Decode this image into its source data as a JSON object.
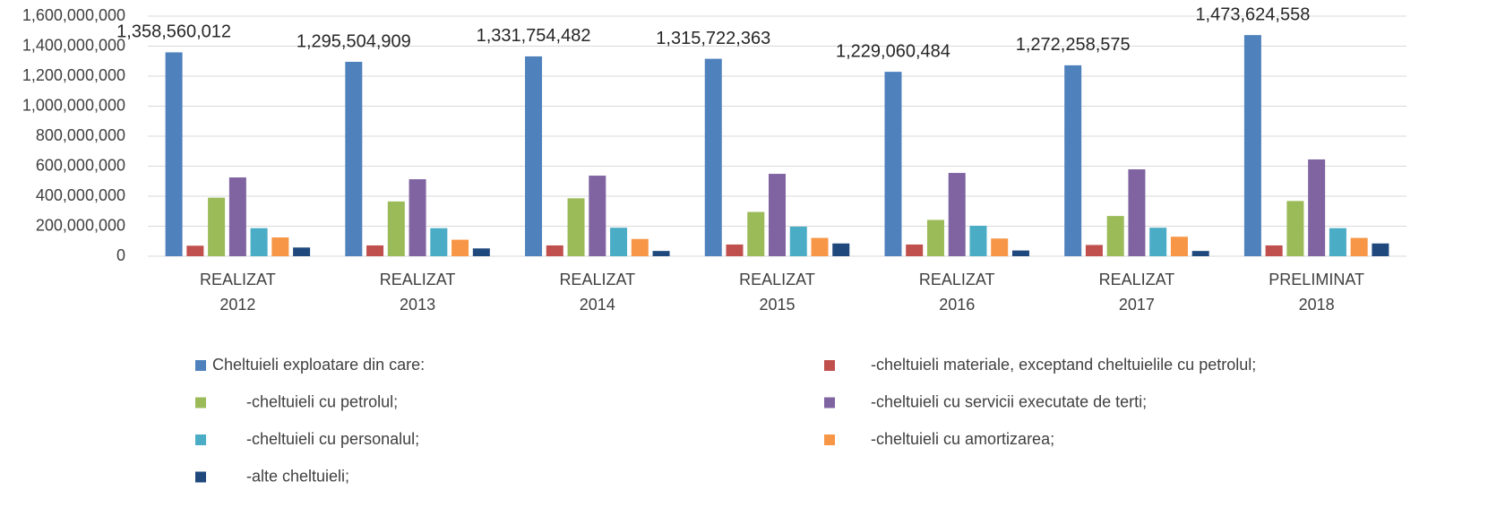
{
  "chart_data": {
    "type": "bar",
    "categories": [
      "REALIZAT 2012",
      "REALIZAT 2013",
      "REALIZAT 2014",
      "REALIZAT 2015",
      "REALIZAT 2016",
      "REALIZAT 2017",
      "PRELIMINAT 2018"
    ],
    "series": [
      {
        "name": "Cheltuieli exploatare din care:",
        "color": "#4f81bd",
        "values": [
          1358560012,
          1295504909,
          1331754482,
          1315722363,
          1229060484,
          1272258575,
          1473624558
        ],
        "value_labels": [
          "1,358,560,012",
          "1,295,504,909",
          "1,331,754,482",
          "1,315,722,363",
          "1,229,060,484",
          "1,272,258,575",
          "1,473,624,558"
        ]
      },
      {
        "name": "-cheltuieli materiale, exceptand cheltuielile cu petrolul;",
        "color": "#c0504d",
        "values": [
          70000000,
          72000000,
          72000000,
          78000000,
          78000000,
          75000000,
          72000000
        ]
      },
      {
        "name": "-cheltuieli cu petrolul;",
        "color": "#9bbb59",
        "values": [
          390000000,
          365000000,
          386000000,
          295000000,
          242000000,
          268000000,
          368000000
        ]
      },
      {
        "name": "-cheltuieli cu servicii executate de terti;",
        "color": "#8064a2",
        "values": [
          525000000,
          513000000,
          537000000,
          549000000,
          555000000,
          579000000,
          645000000
        ]
      },
      {
        "name": "-cheltuieli cu personalul;",
        "color": "#4bacc6",
        "values": [
          187000000,
          187000000,
          190000000,
          197000000,
          203000000,
          190000000,
          187000000
        ]
      },
      {
        "name": "-cheltuieli cu amortizarea;",
        "color": "#f79646",
        "values": [
          125000000,
          110000000,
          115000000,
          122000000,
          118000000,
          130000000,
          122000000
        ]
      },
      {
        "name": "-alte cheltuieli;",
        "color": "#1f497d",
        "values": [
          58000000,
          52000000,
          35000000,
          85000000,
          38000000,
          35000000,
          85000000
        ]
      }
    ],
    "ylim": [
      0,
      1600000000
    ],
    "yticks": [
      0,
      {
        "value": 200000000,
        "label": "200,000,000"
      },
      {
        "value": 400000000,
        "label": "400,000,000"
      },
      {
        "value": 600000000,
        "label": "600,000,000"
      },
      {
        "value": 800000000,
        "label": "800,000,000"
      },
      {
        "value": 1000000000,
        "label": "1,000,000,000"
      },
      {
        "value": 1200000000,
        "label": "1,200,000,000"
      },
      {
        "value": 1400000000,
        "label": "1,400,000,000"
      },
      {
        "value": 1600000000,
        "label": "1,600,000,000"
      }
    ],
    "grid": true
  }
}
